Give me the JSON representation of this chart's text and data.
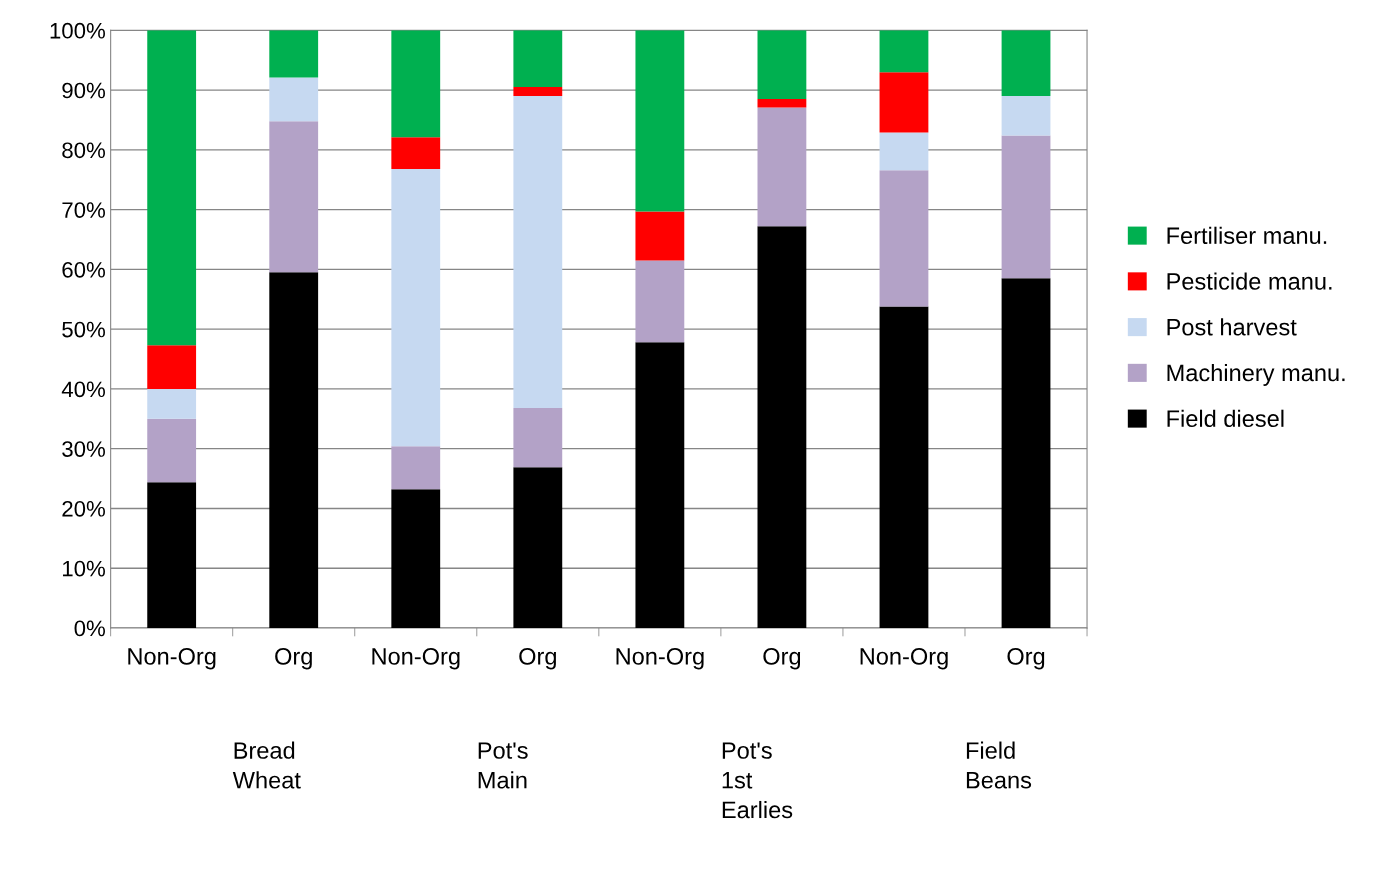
{
  "chart_data": {
    "type": "bar",
    "stacked": true,
    "categories": [
      "Non-Org",
      "Org",
      "Non-Org",
      "Org",
      "Non-Org",
      "Org",
      "Non-Org",
      "Org"
    ],
    "series": [
      {
        "name": "Field diesel",
        "color": "#000000",
        "values": [
          24.4,
          59.5,
          23.2,
          26.9,
          47.8,
          67.2,
          53.8,
          58.5
        ]
      },
      {
        "name": "Machinery manu.",
        "color": "#b3a2c7",
        "values": [
          10.6,
          25.3,
          7.2,
          9.9,
          13.7,
          19.9,
          22.8,
          23.9
        ]
      },
      {
        "name": "Post harvest",
        "color": "#c6d9f1",
        "values": [
          5.0,
          7.3,
          46.4,
          52.2,
          0,
          0,
          6.3,
          6.6
        ]
      },
      {
        "name": "Pesticide manu.",
        "color": "#ff0000",
        "values": [
          7.3,
          0,
          5.3,
          1.5,
          8.2,
          1.4,
          10.1,
          0
        ]
      },
      {
        "name": "Fertiliser manu.",
        "color": "#00b050",
        "values": [
          52.7,
          7.9,
          17.9,
          9.5,
          30.3,
          11.5,
          7.0,
          11.0
        ]
      }
    ],
    "ylim": [
      0,
      100
    ],
    "yticks": [
      {
        "value": 0,
        "label": "0%"
      },
      {
        "value": 10,
        "label": "10%"
      },
      {
        "value": 20,
        "label": "20%"
      },
      {
        "value": 30,
        "label": "30%"
      },
      {
        "value": 40,
        "label": "40%"
      },
      {
        "value": 50,
        "label": "50%"
      },
      {
        "value": 60,
        "label": "60%"
      },
      {
        "value": 70,
        "label": "70%"
      },
      {
        "value": 80,
        "label": "80%"
      },
      {
        "value": 90,
        "label": "90%"
      },
      {
        "value": 100,
        "label": "100%"
      }
    ],
    "grid": "y",
    "legend": "right",
    "annotations": [
      "Bread\nWheat",
      "Pot's\nMain",
      "Pot's\n1st\nEarlies",
      "Field\nBeans"
    ]
  }
}
